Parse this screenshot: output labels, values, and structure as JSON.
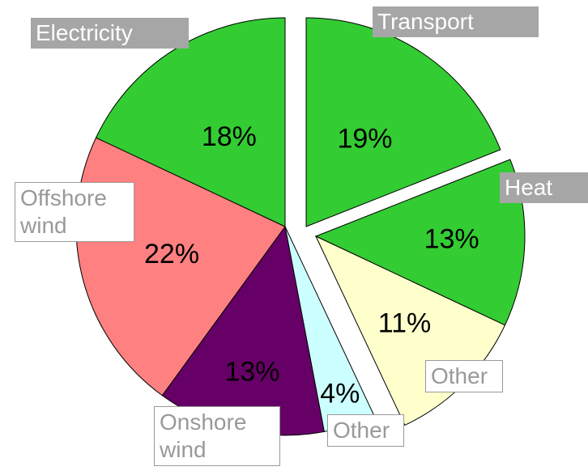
{
  "chart_data": {
    "type": "pie",
    "categories": [
      "Transport",
      "Heat",
      "Other",
      "Other",
      "Onshore wind",
      "Offshore wind",
      "Electricity"
    ],
    "values": [
      19,
      13,
      11,
      4,
      13,
      22,
      18
    ],
    "value_labels": [
      "19%",
      "13%",
      "11%",
      "4%",
      "13%",
      "22%",
      "18%"
    ],
    "colors": [
      "#33cc33",
      "#33cc33",
      "#ffffcc",
      "#ccffff",
      "#660066",
      "#ff8080",
      "#33cc33"
    ]
  }
}
